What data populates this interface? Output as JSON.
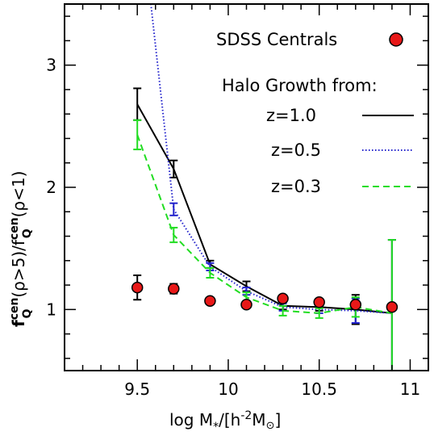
{
  "chart_data": {
    "type": "line",
    "xlabel_main": "log M",
    "xlabel_sub": "*",
    "xlabel_rest": "/[h",
    "xlabel_sup": "-2",
    "xlabel_end": "M",
    "xlabel_sun": "⊙",
    "xlabel_close": "]",
    "ylabel_f1": "f",
    "ylabel_sup1": "cen",
    "ylabel_sub1": "Q",
    "ylabel_mid": "(ρ>5)/f",
    "ylabel_sup2": "cen",
    "ylabel_sub2": "Q",
    "ylabel_end": "(ρ<1)",
    "xlim": [
      9.1,
      11.1
    ],
    "ylim": [
      0.5,
      3.5
    ],
    "xticks": [
      9.5,
      10,
      10.5,
      11
    ],
    "xtick_labels": [
      "9.5",
      "10",
      "10.5",
      "11"
    ],
    "yticks": [
      1,
      2,
      3
    ],
    "ytick_labels": [
      "1",
      "2",
      "3"
    ],
    "legend_heading": "Halo Growth from:",
    "sdss": {
      "name": "SDSS Centrals",
      "color": "#e81818",
      "x": [
        9.5,
        9.7,
        9.9,
        10.1,
        10.3,
        10.5,
        10.7,
        10.9
      ],
      "y": [
        1.18,
        1.17,
        1.07,
        1.04,
        1.09,
        1.06,
        1.04,
        1.02
      ],
      "err": [
        0.1,
        0.04,
        0.02,
        0.02,
        0.02,
        0.02,
        0.02,
        0.02
      ]
    },
    "series": [
      {
        "name": "z=1.0",
        "color": "#000000",
        "style": "solid",
        "x": [
          9.5,
          9.7,
          9.9,
          10.1,
          10.3,
          10.5,
          10.7,
          10.9
        ],
        "y": [
          2.68,
          2.15,
          1.37,
          1.19,
          1.03,
          1.02,
          1.0,
          0.97
        ],
        "err": [
          0.13,
          0.07,
          0.03,
          0.04,
          0.03,
          0.03,
          0.12,
          0.6
        ]
      },
      {
        "name": "z=0.5",
        "color": "#2222cc",
        "style": "dotted",
        "x": [
          9.5,
          9.7,
          9.9,
          10.1,
          10.3,
          10.5,
          10.7,
          10.9
        ],
        "y": [
          4.5,
          1.82,
          1.35,
          1.15,
          1.02,
          1.0,
          0.99,
          0.97
        ],
        "err": [
          0,
          0.05,
          0.03,
          0.03,
          0.03,
          0.03,
          0.1,
          0.6
        ]
      },
      {
        "name": "z=0.3",
        "color": "#22dd22",
        "style": "dashed",
        "x": [
          9.5,
          9.7,
          9.9,
          10.1,
          10.3,
          10.5,
          10.7,
          10.9
        ],
        "y": [
          2.43,
          1.61,
          1.3,
          1.1,
          0.99,
          0.97,
          1.02,
          0.97
        ],
        "err": [
          0.12,
          0.06,
          0.04,
          0.04,
          0.04,
          0.04,
          0.08,
          0.6
        ]
      }
    ]
  }
}
